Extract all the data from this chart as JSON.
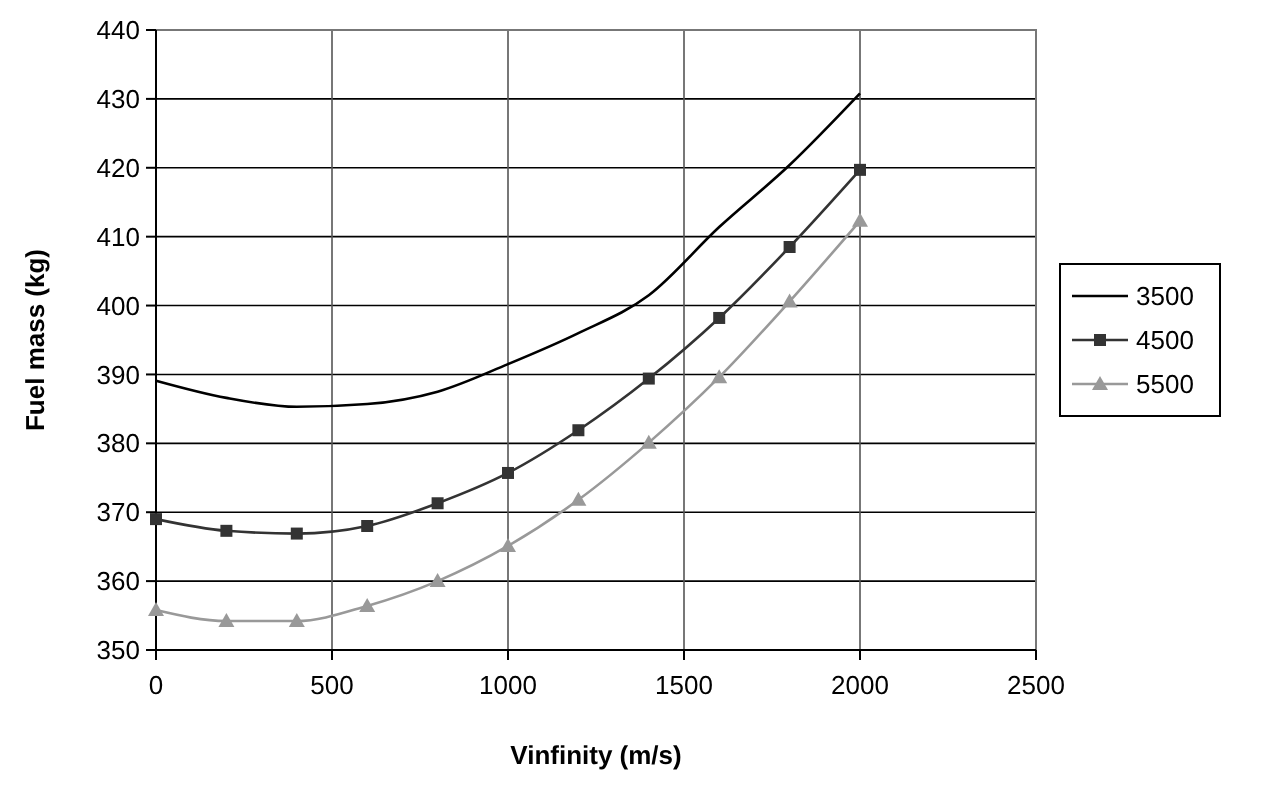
{
  "chart_data": {
    "type": "line",
    "xlabel": "Vinfinity  (m/s)",
    "ylabel": "Fuel mass (kg)",
    "x": [
      0,
      200,
      400,
      600,
      800,
      1000,
      1200,
      1400,
      1600,
      1800,
      2000
    ],
    "series": [
      {
        "name": "3500",
        "color": "#000000",
        "marker": "none",
        "values": [
          389.1,
          386.6,
          385.3,
          385.7,
          387.5,
          391.5,
          396,
          401.5,
          411.4,
          420.4,
          430.8
        ]
      },
      {
        "name": "4500",
        "color": "#333333",
        "marker": "square",
        "values": [
          369,
          367.3,
          366.9,
          368,
          371.3,
          375.7,
          381.9,
          389.4,
          398.2,
          408.5,
          419.7
        ]
      },
      {
        "name": "5500",
        "color": "#999999",
        "marker": "triangle",
        "values": [
          355.8,
          354.2,
          354.2,
          356.4,
          360,
          365.1,
          371.8,
          380.1,
          389.6,
          400.6,
          412.3
        ]
      }
    ],
    "xlim": [
      0,
      2500
    ],
    "xticks": [
      0,
      500,
      1000,
      1500,
      2000,
      2500
    ],
    "ylim": [
      350,
      440
    ],
    "yticks": [
      350,
      360,
      370,
      380,
      390,
      400,
      410,
      420,
      430,
      440
    ],
    "grid": true,
    "legend": "right"
  }
}
